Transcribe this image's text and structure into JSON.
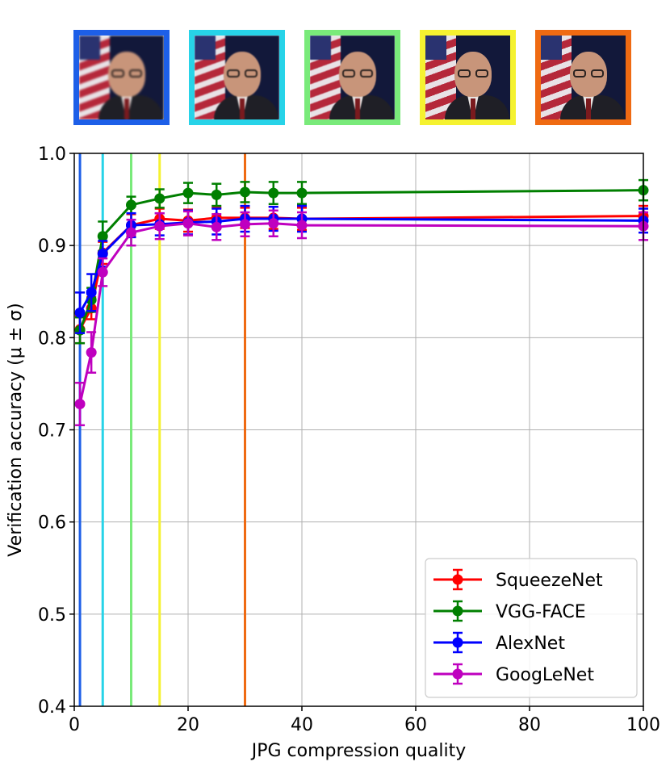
{
  "thumbnails": [
    {
      "quality": 1,
      "border_color": "#1d5fe8",
      "name": "thumbnail-q1",
      "pixelation": "heavy"
    },
    {
      "quality": 5,
      "border_color": "#27d3e8",
      "name": "thumbnail-q5",
      "pixelation": "medium"
    },
    {
      "quality": 10,
      "border_color": "#79ea7a",
      "name": "thumbnail-q10",
      "pixelation": "light"
    },
    {
      "quality": 15,
      "border_color": "#f5f230",
      "name": "thumbnail-q15",
      "pixelation": "none"
    },
    {
      "quality": 30,
      "border_color": "#ef6a12",
      "name": "thumbnail-q30",
      "pixelation": "none"
    }
  ],
  "chart_data": {
    "type": "line",
    "title": "",
    "xlabel": "JPG compression quality",
    "ylabel": "Verification accuracy (μ ± σ)",
    "xlim": [
      0,
      100
    ],
    "ylim": [
      0.4,
      1.0
    ],
    "xticks": [
      0,
      20,
      40,
      60,
      80,
      100
    ],
    "xtick_labels": [
      "0",
      "20",
      "40",
      "60",
      "80",
      "100"
    ],
    "yticks": [
      0.4,
      0.5,
      0.6,
      0.7,
      0.8,
      0.9,
      1.0
    ],
    "ytick_labels": [
      "0.4",
      "0.5",
      "0.6",
      "0.7",
      "0.8",
      "0.9",
      "1.0"
    ],
    "grid": true,
    "legend_position": "bottom-right",
    "x": [
      1,
      3,
      5,
      10,
      15,
      20,
      25,
      30,
      35,
      40,
      100
    ],
    "vertical_lines": [
      {
        "x": 1,
        "color": "#1d5fe8"
      },
      {
        "x": 5,
        "color": "#27d3e8"
      },
      {
        "x": 10,
        "color": "#79ea7a"
      },
      {
        "x": 15,
        "color": "#f5f230"
      },
      {
        "x": 30,
        "color": "#ef6a12"
      }
    ],
    "series": [
      {
        "name": "SqueezeNet",
        "color": "#ff0000",
        "values": [
          0.809,
          0.832,
          0.892,
          0.922,
          0.929,
          0.927,
          0.93,
          0.93,
          0.93,
          0.929,
          0.932
        ],
        "errors": [
          0.015,
          0.012,
          0.012,
          0.012,
          0.011,
          0.012,
          0.011,
          0.011,
          0.012,
          0.012,
          0.011
        ]
      },
      {
        "name": "VGG-FACE",
        "color": "#007f00",
        "values": [
          0.808,
          0.841,
          0.91,
          0.944,
          0.951,
          0.957,
          0.955,
          0.958,
          0.957,
          0.957,
          0.96
        ],
        "errors": [
          0.014,
          0.013,
          0.016,
          0.009,
          0.01,
          0.011,
          0.012,
          0.011,
          0.012,
          0.012,
          0.011
        ]
      },
      {
        "name": "AlexNet",
        "color": "#0000ff",
        "values": [
          0.827,
          0.849,
          0.891,
          0.922,
          0.923,
          0.925,
          0.926,
          0.929,
          0.929,
          0.929,
          0.927
        ],
        "errors": [
          0.022,
          0.02,
          0.014,
          0.013,
          0.012,
          0.013,
          0.014,
          0.014,
          0.013,
          0.014,
          0.013
        ]
      },
      {
        "name": "GoogLeNet",
        "color": "#bf00bf",
        "values": [
          0.728,
          0.784,
          0.871,
          0.914,
          0.921,
          0.924,
          0.92,
          0.923,
          0.924,
          0.922,
          0.921
        ],
        "errors": [
          0.023,
          0.022,
          0.015,
          0.014,
          0.014,
          0.013,
          0.014,
          0.013,
          0.014,
          0.014,
          0.015
        ]
      }
    ]
  }
}
